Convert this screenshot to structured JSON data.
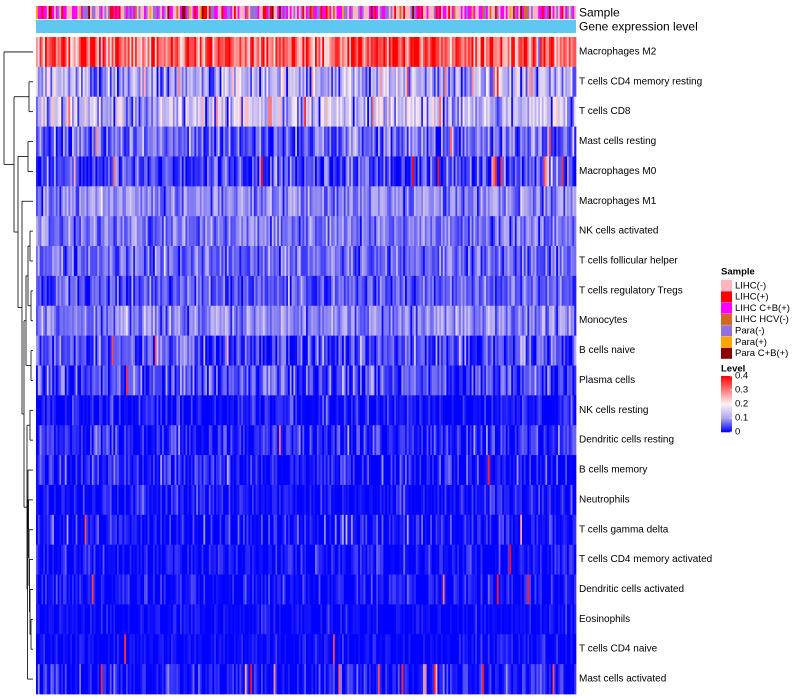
{
  "chart_data": {
    "type": "heatmap",
    "title": "",
    "column_annotations": [
      {
        "name": "Sample",
        "label": "Sample"
      },
      {
        "name": "Gene expression level",
        "label": "Gene expression level",
        "color": "#5ec8f2"
      }
    ],
    "rows": [
      {
        "label": "Macrophages M2",
        "mean": 0.32,
        "spread": 0.09,
        "spikes": 0.0
      },
      {
        "label": "T cells CD4 memory resting",
        "mean": 0.11,
        "spread": 0.07,
        "spikes": 0.01
      },
      {
        "label": "T cells CD8",
        "mean": 0.12,
        "spread": 0.08,
        "spikes": 0.02
      },
      {
        "label": "Mast cells resting",
        "mean": 0.06,
        "spread": 0.05,
        "spikes": 0.01
      },
      {
        "label": "Macrophages M0",
        "mean": 0.04,
        "spread": 0.05,
        "spikes": 0.04
      },
      {
        "label": "Macrophages M1",
        "mean": 0.08,
        "spread": 0.04,
        "spikes": 0.0
      },
      {
        "label": "NK cells activated",
        "mean": 0.07,
        "spread": 0.04,
        "spikes": 0.0
      },
      {
        "label": "T cells follicular helper",
        "mean": 0.06,
        "spread": 0.04,
        "spikes": 0.0
      },
      {
        "label": "T cells regulatory  Tregs",
        "mean": 0.05,
        "spread": 0.04,
        "spikes": 0.0
      },
      {
        "label": "Monocytes",
        "mean": 0.08,
        "spread": 0.04,
        "spikes": 0.0
      },
      {
        "label": "B cells naive",
        "mean": 0.04,
        "spread": 0.05,
        "spikes": 0.01
      },
      {
        "label": "Plasma cells",
        "mean": 0.04,
        "spread": 0.05,
        "spikes": 0.01
      },
      {
        "label": "NK cells resting",
        "mean": 0.01,
        "spread": 0.03,
        "spikes": 0.0
      },
      {
        "label": "Dendritic cells resting",
        "mean": 0.02,
        "spread": 0.04,
        "spikes": 0.005
      },
      {
        "label": "B cells memory",
        "mean": 0.01,
        "spread": 0.04,
        "spikes": 0.005
      },
      {
        "label": "Neutrophils",
        "mean": 0.01,
        "spread": 0.03,
        "spikes": 0.0
      },
      {
        "label": "T cells gamma delta",
        "mean": 0.005,
        "spread": 0.04,
        "spikes": 0.005
      },
      {
        "label": "T cells CD4 memory activated",
        "mean": 0.005,
        "spread": 0.03,
        "spikes": 0.005
      },
      {
        "label": "Dendritic cells activated",
        "mean": 0.005,
        "spread": 0.03,
        "spikes": 0.005
      },
      {
        "label": "Eosinophils",
        "mean": 0.003,
        "spread": 0.02,
        "spikes": 0.003
      },
      {
        "label": "T cells CD4 naive",
        "mean": 0.003,
        "spread": 0.02,
        "spikes": 0.005
      },
      {
        "label": "Mast cells activated",
        "mean": 0.01,
        "spread": 0.04,
        "spikes": 0.03
      }
    ],
    "n_columns": 300,
    "sample_groups": [
      {
        "label": "LIHC(-)",
        "color": "#ffb6c1",
        "weight": 0.32
      },
      {
        "label": "LIHC(+)",
        "color": "#ff0000",
        "weight": 0.08
      },
      {
        "label": "LIHC C+B(+)",
        "color": "#ff00ff",
        "weight": 0.3
      },
      {
        "label": "LIHC HCV(-)",
        "color": "#d2691e",
        "weight": 0.04
      },
      {
        "label": "Para(-)",
        "color": "#9370db",
        "weight": 0.18
      },
      {
        "label": "Para(+)",
        "color": "#ffa500",
        "weight": 0.04
      },
      {
        "label": "Para C+B(+)",
        "color": "#8b0000",
        "weight": 0.04
      }
    ],
    "color_scale": {
      "title": "Level",
      "range": [
        0,
        0.4
      ],
      "stops": [
        {
          "value": 0,
          "color": "#0000ff"
        },
        {
          "value": 0.1,
          "color": "#b0a7f0"
        },
        {
          "value": 0.2,
          "color": "#fff2f2"
        },
        {
          "value": 0.4,
          "color": "#ff0000"
        }
      ],
      "ticks": [
        {
          "value": 0.4,
          "label": "0.4"
        },
        {
          "value": 0.3,
          "label": "0.3"
        },
        {
          "value": 0.2,
          "label": "0.2"
        },
        {
          "value": 0.1,
          "label": "0.1"
        },
        {
          "value": 0,
          "label": "0"
        }
      ]
    },
    "legend": {
      "title": "Sample",
      "position": "right"
    },
    "row_dendrogram": true
  }
}
